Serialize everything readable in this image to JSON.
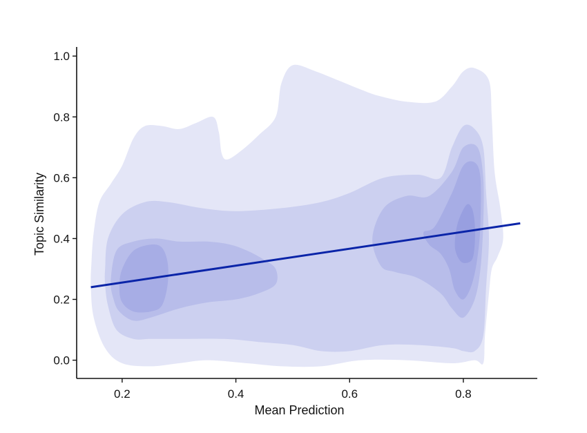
{
  "chart_data": {
    "type": "density-contour",
    "title": "",
    "xlabel": "Mean Prediction",
    "ylabel": "Topic Similarity",
    "xlim": [
      0.12,
      0.93
    ],
    "ylim": [
      -0.06,
      1.03
    ],
    "x_ticks": [
      0.2,
      0.4,
      0.6,
      0.8
    ],
    "y_ticks": [
      0.0,
      0.2,
      0.4,
      0.6,
      0.8,
      1.0
    ],
    "x_tick_labels": [
      "0.2",
      "0.4",
      "0.6",
      "0.8"
    ],
    "y_tick_labels": [
      "0.0",
      "0.2",
      "0.4",
      "0.6",
      "0.8",
      "1.0"
    ],
    "grid": false,
    "legend": "none",
    "fill_color": "#3f51c8",
    "line_color": "#0a24a8",
    "density_levels": [
      {
        "level": 1,
        "regions": [
          [
            [
              0.146,
              0.32
            ],
            [
              0.15,
              0.42
            ],
            [
              0.16,
              0.52
            ],
            [
              0.18,
              0.58
            ],
            [
              0.2,
              0.64
            ],
            [
              0.22,
              0.73
            ],
            [
              0.24,
              0.77
            ],
            [
              0.27,
              0.77
            ],
            [
              0.3,
              0.76
            ],
            [
              0.33,
              0.78
            ],
            [
              0.36,
              0.8
            ],
            [
              0.37,
              0.75
            ],
            [
              0.375,
              0.68
            ],
            [
              0.385,
              0.66
            ],
            [
              0.41,
              0.69
            ],
            [
              0.44,
              0.74
            ],
            [
              0.47,
              0.8
            ],
            [
              0.48,
              0.91
            ],
            [
              0.5,
              0.97
            ],
            [
              0.54,
              0.95
            ],
            [
              0.58,
              0.92
            ],
            [
              0.62,
              0.89
            ],
            [
              0.65,
              0.87
            ],
            [
              0.7,
              0.85
            ],
            [
              0.75,
              0.85
            ],
            [
              0.78,
              0.9
            ],
            [
              0.8,
              0.95
            ],
            [
              0.82,
              0.96
            ],
            [
              0.845,
              0.92
            ],
            [
              0.85,
              0.8
            ],
            [
              0.855,
              0.62
            ],
            [
              0.865,
              0.5
            ],
            [
              0.87,
              0.4
            ],
            [
              0.86,
              0.34
            ],
            [
              0.85,
              0.3
            ],
            [
              0.845,
              0.22
            ],
            [
              0.838,
              0.08
            ],
            [
              0.835,
              -0.01
            ],
            [
              0.82,
              0.0
            ],
            [
              0.78,
              -0.01
            ],
            [
              0.7,
              0.0
            ],
            [
              0.62,
              0.0
            ],
            [
              0.55,
              -0.02
            ],
            [
              0.48,
              -0.02
            ],
            [
              0.42,
              -0.01
            ],
            [
              0.35,
              0.0
            ],
            [
              0.3,
              -0.01
            ],
            [
              0.25,
              -0.02
            ],
            [
              0.2,
              -0.01
            ],
            [
              0.17,
              0.04
            ],
            [
              0.15,
              0.14
            ],
            [
              0.145,
              0.24
            ]
          ]
        ]
      },
      {
        "level": 2,
        "regions": [
          [
            [
              0.17,
              0.3
            ],
            [
              0.175,
              0.4
            ],
            [
              0.2,
              0.48
            ],
            [
              0.24,
              0.52
            ],
            [
              0.28,
              0.52
            ],
            [
              0.34,
              0.5
            ],
            [
              0.4,
              0.49
            ],
            [
              0.48,
              0.5
            ],
            [
              0.55,
              0.52
            ],
            [
              0.6,
              0.55
            ],
            [
              0.66,
              0.6
            ],
            [
              0.72,
              0.61
            ],
            [
              0.76,
              0.6
            ],
            [
              0.78,
              0.7
            ],
            [
              0.8,
              0.77
            ],
            [
              0.82,
              0.76
            ],
            [
              0.835,
              0.7
            ],
            [
              0.84,
              0.55
            ],
            [
              0.845,
              0.4
            ],
            [
              0.84,
              0.24
            ],
            [
              0.835,
              0.08
            ],
            [
              0.82,
              0.03
            ],
            [
              0.8,
              0.03
            ],
            [
              0.78,
              0.04
            ],
            [
              0.72,
              0.05
            ],
            [
              0.66,
              0.05
            ],
            [
              0.6,
              0.03
            ],
            [
              0.55,
              0.03
            ],
            [
              0.5,
              0.05
            ],
            [
              0.44,
              0.06
            ],
            [
              0.38,
              0.07
            ],
            [
              0.3,
              0.07
            ],
            [
              0.25,
              0.07
            ],
            [
              0.22,
              0.07
            ],
            [
              0.19,
              0.1
            ],
            [
              0.175,
              0.18
            ],
            [
              0.17,
              0.25
            ]
          ]
        ]
      },
      {
        "level": 3,
        "regions": [
          [
            [
              0.18,
              0.26
            ],
            [
              0.19,
              0.36
            ],
            [
              0.22,
              0.39
            ],
            [
              0.26,
              0.4
            ],
            [
              0.3,
              0.39
            ],
            [
              0.35,
              0.39
            ],
            [
              0.39,
              0.38
            ],
            [
              0.42,
              0.36
            ],
            [
              0.45,
              0.33
            ],
            [
              0.47,
              0.3
            ],
            [
              0.47,
              0.25
            ],
            [
              0.44,
              0.22
            ],
            [
              0.4,
              0.2
            ],
            [
              0.35,
              0.19
            ],
            [
              0.3,
              0.17
            ],
            [
              0.25,
              0.14
            ],
            [
              0.22,
              0.13
            ],
            [
              0.195,
              0.16
            ],
            [
              0.185,
              0.2
            ]
          ],
          [
            [
              0.64,
              0.4
            ],
            [
              0.66,
              0.5
            ],
            [
              0.7,
              0.54
            ],
            [
              0.74,
              0.54
            ],
            [
              0.78,
              0.62
            ],
            [
              0.8,
              0.7
            ],
            [
              0.825,
              0.7
            ],
            [
              0.835,
              0.6
            ],
            [
              0.835,
              0.45
            ],
            [
              0.83,
              0.3
            ],
            [
              0.82,
              0.2
            ],
            [
              0.8,
              0.14
            ],
            [
              0.78,
              0.17
            ],
            [
              0.76,
              0.22
            ],
            [
              0.72,
              0.27
            ],
            [
              0.68,
              0.29
            ],
            [
              0.655,
              0.31
            ]
          ]
        ]
      },
      {
        "level": 4,
        "regions": [
          [
            [
              0.195,
              0.24
            ],
            [
              0.2,
              0.3
            ],
            [
              0.22,
              0.36
            ],
            [
              0.25,
              0.38
            ],
            [
              0.27,
              0.37
            ],
            [
              0.28,
              0.32
            ],
            [
              0.28,
              0.25
            ],
            [
              0.27,
              0.18
            ],
            [
              0.25,
              0.16
            ],
            [
              0.22,
              0.16
            ],
            [
              0.2,
              0.19
            ]
          ],
          [
            [
              0.73,
              0.42
            ],
            [
              0.75,
              0.44
            ],
            [
              0.78,
              0.55
            ],
            [
              0.8,
              0.64
            ],
            [
              0.82,
              0.65
            ],
            [
              0.83,
              0.6
            ],
            [
              0.83,
              0.45
            ],
            [
              0.825,
              0.34
            ],
            [
              0.815,
              0.25
            ],
            [
              0.8,
              0.2
            ],
            [
              0.785,
              0.23
            ],
            [
              0.775,
              0.3
            ],
            [
              0.76,
              0.35
            ],
            [
              0.74,
              0.38
            ]
          ]
        ]
      },
      {
        "level": 5,
        "regions": [
          [
            [
              0.785,
              0.38
            ],
            [
              0.79,
              0.45
            ],
            [
              0.805,
              0.51
            ],
            [
              0.815,
              0.5
            ],
            [
              0.82,
              0.45
            ],
            [
              0.82,
              0.38
            ],
            [
              0.815,
              0.33
            ],
            [
              0.8,
              0.32
            ],
            [
              0.79,
              0.34
            ]
          ]
        ]
      }
    ],
    "regression_line": {
      "x": [
        0.145,
        0.9
      ],
      "y": [
        0.24,
        0.45
      ]
    }
  }
}
